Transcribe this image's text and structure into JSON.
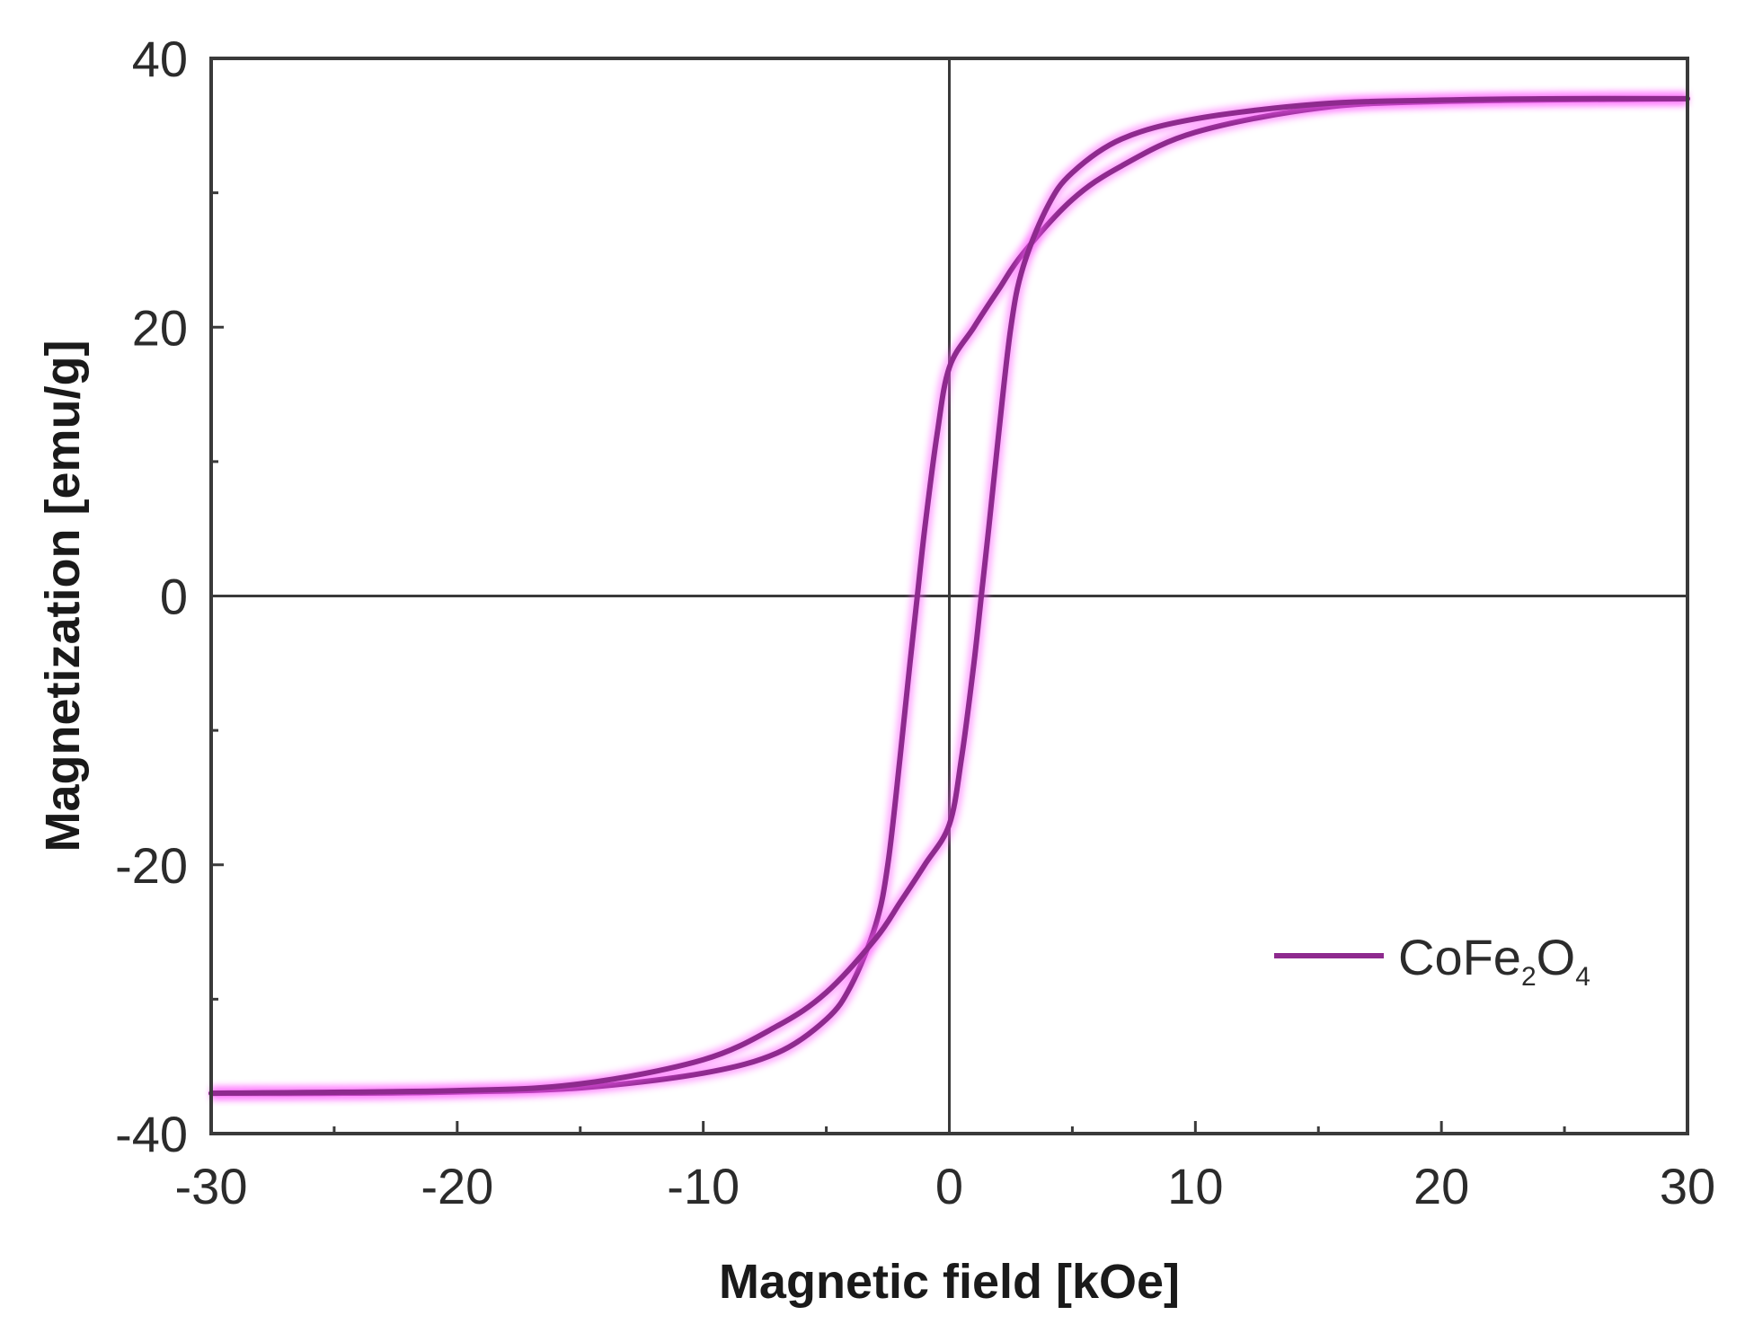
{
  "chart_data": {
    "type": "line",
    "xlabel": "Magnetic field [kOe]",
    "ylabel": "Magnetization [emu/g]",
    "xlim": [
      -30,
      30
    ],
    "ylim": [
      -40,
      40
    ],
    "x_ticks": [
      -30,
      -20,
      -10,
      0,
      10,
      20,
      30
    ],
    "y_ticks": [
      -40,
      -20,
      0,
      20,
      40
    ],
    "x_tick_labels": [
      "-30",
      "-20",
      "-10",
      "0",
      "10",
      "20",
      "30"
    ],
    "y_tick_labels": [
      "-40",
      "-20",
      "0",
      "20",
      "40"
    ],
    "grid": false,
    "zero_lines": true,
    "legend_position": "lower-right",
    "legend": {
      "text": "CoFe",
      "sub1": "2",
      "mid": "O",
      "sub2": "4"
    },
    "series": [
      {
        "name": "CoFe2O4",
        "color": "#8e2a8e",
        "glow_color": "#ff5cff",
        "branches": [
          {
            "x": [
              30,
              20,
              15,
              10,
              7,
              5,
              3,
              2,
              1,
              0,
              -0.5,
              -1,
              -1.3,
              -1.6,
              -2,
              -2.5,
              -3,
              -4,
              -5,
              -7,
              -10,
              -15,
              -20,
              -25,
              -30
            ],
            "y": [
              37,
              36.8,
              36.3,
              34.5,
              32,
              29.5,
              25.5,
              22.8,
              20,
              17,
              12,
              5,
              0,
              -5,
              -12,
              -20,
              -24.5,
              -29,
              -31.5,
              -34,
              -35.5,
              -36.6,
              -36.9,
              -37,
              -37
            ]
          },
          {
            "x": [
              -30,
              -20,
              -15,
              -10,
              -7,
              -5,
              -3,
              -2,
              -1,
              0,
              0.5,
              1,
              1.3,
              1.6,
              2,
              2.5,
              3,
              4,
              5,
              7,
              10,
              15,
              20,
              25,
              30
            ],
            "y": [
              -37,
              -36.8,
              -36.3,
              -34.5,
              -32,
              -29.5,
              -25.5,
              -22.8,
              -20,
              -17,
              -12,
              -5,
              0,
              5,
              12,
              20,
              24.5,
              29,
              31.5,
              34,
              35.5,
              36.6,
              36.9,
              37,
              37
            ]
          }
        ]
      }
    ]
  }
}
